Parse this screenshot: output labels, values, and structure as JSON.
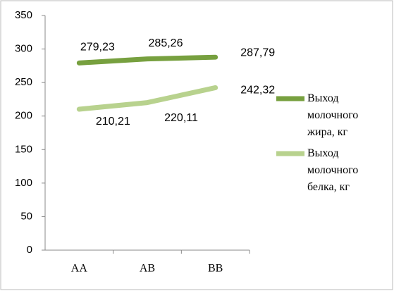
{
  "chart_data": {
    "type": "line",
    "categories": [
      "AA",
      "AB",
      "BB"
    ],
    "series": [
      {
        "name": "Выход молочного жира, кг",
        "color": "#77a03f",
        "values": [
          279.23,
          285.26,
          287.79
        ],
        "value_labels": [
          "279,23",
          "285,26",
          "287,79"
        ]
      },
      {
        "name": "Выход молочного белка, кг",
        "color": "#b8d28e",
        "values": [
          210.21,
          220.11,
          242.32
        ],
        "value_labels": [
          "210,21",
          "220,11",
          "242,32"
        ]
      }
    ],
    "ylim": [
      0,
      350
    ],
    "yticks": [
      0,
      50,
      100,
      150,
      200,
      250,
      300,
      350
    ],
    "grid": false,
    "legend": "right"
  }
}
